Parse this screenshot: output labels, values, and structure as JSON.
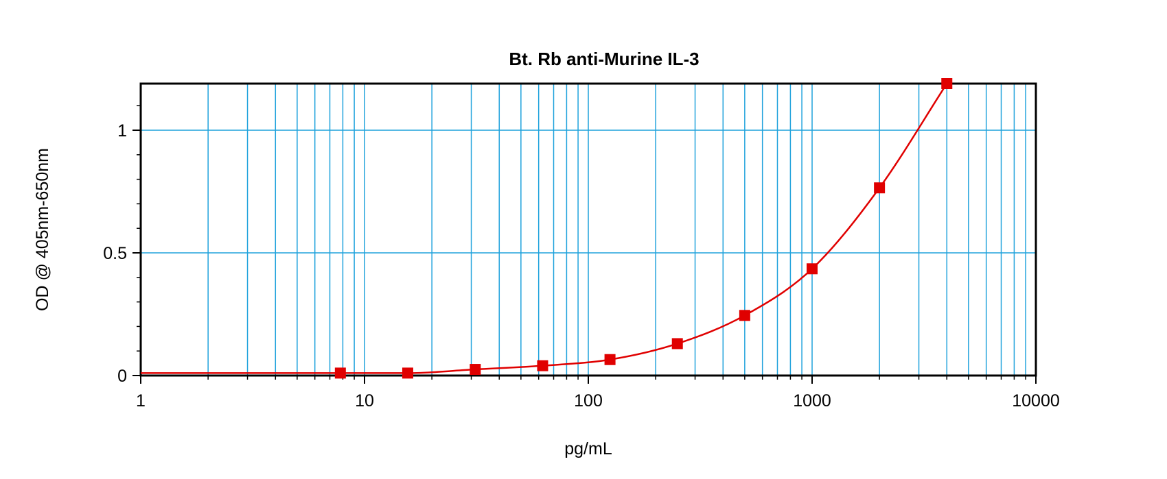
{
  "chart_data": {
    "type": "scatter",
    "title": "Bt. Rb anti-Murine IL-3",
    "xlabel": "pg/mL",
    "ylabel": "OD @ 405nm-650nm",
    "xscale": "log",
    "xlim": [
      1,
      10000
    ],
    "ylim": [
      0,
      1.19
    ],
    "x_ticks": [
      1,
      10,
      100,
      1000,
      10000
    ],
    "x_tick_labels": [
      "1",
      "10",
      "100",
      "1000",
      "10000"
    ],
    "y_ticks": [
      0,
      0.5,
      1
    ],
    "y_tick_labels": [
      "0",
      "0.5",
      "1"
    ],
    "grid": true,
    "series": [
      {
        "marker": "square",
        "fit_line": true,
        "x": [
          7.8,
          15.6,
          31.25,
          62.5,
          125,
          250,
          500,
          1000,
          2000,
          4000
        ],
        "y": [
          0.01,
          0.01,
          0.025,
          0.04,
          0.065,
          0.13,
          0.245,
          0.435,
          0.765,
          1.19
        ]
      }
    ],
    "colors": {
      "grid": "#1fa2dc",
      "series": "#e00000",
      "axis": "#000000"
    }
  }
}
